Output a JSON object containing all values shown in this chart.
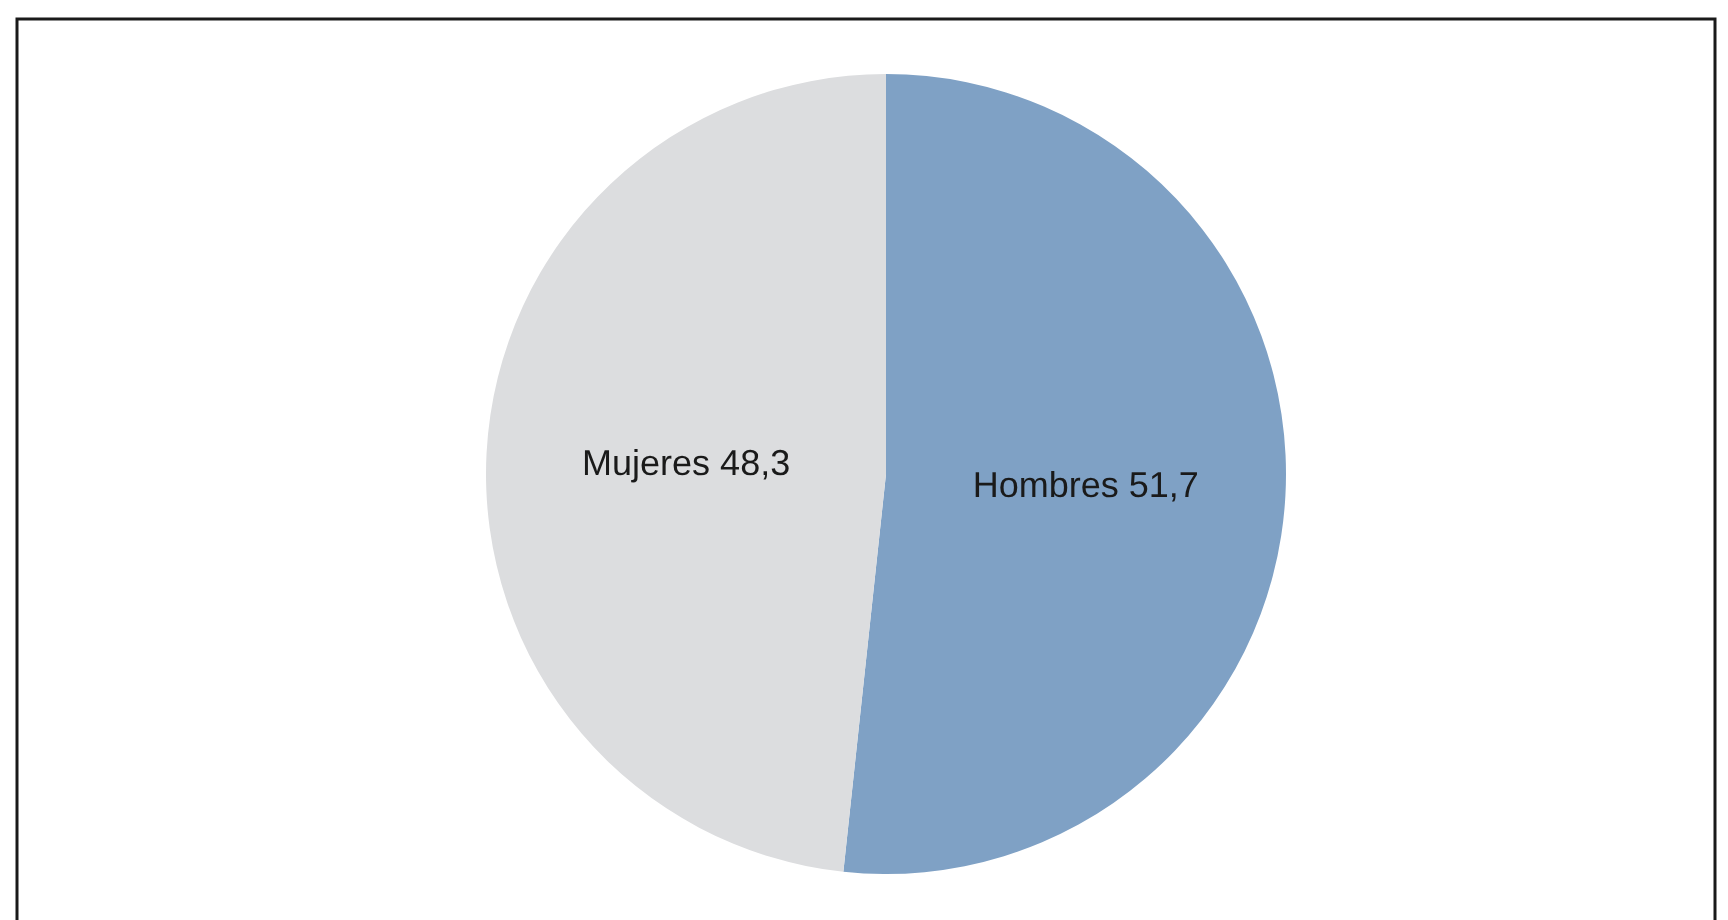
{
  "chart_data": {
    "type": "pie",
    "categories": [
      "Hombres",
      "Mujeres"
    ],
    "values": [
      51.7,
      48.3
    ],
    "value_labels": [
      "51,7",
      "48,3"
    ],
    "colors": [
      "#7fa1c5",
      "#dcdddf"
    ]
  }
}
